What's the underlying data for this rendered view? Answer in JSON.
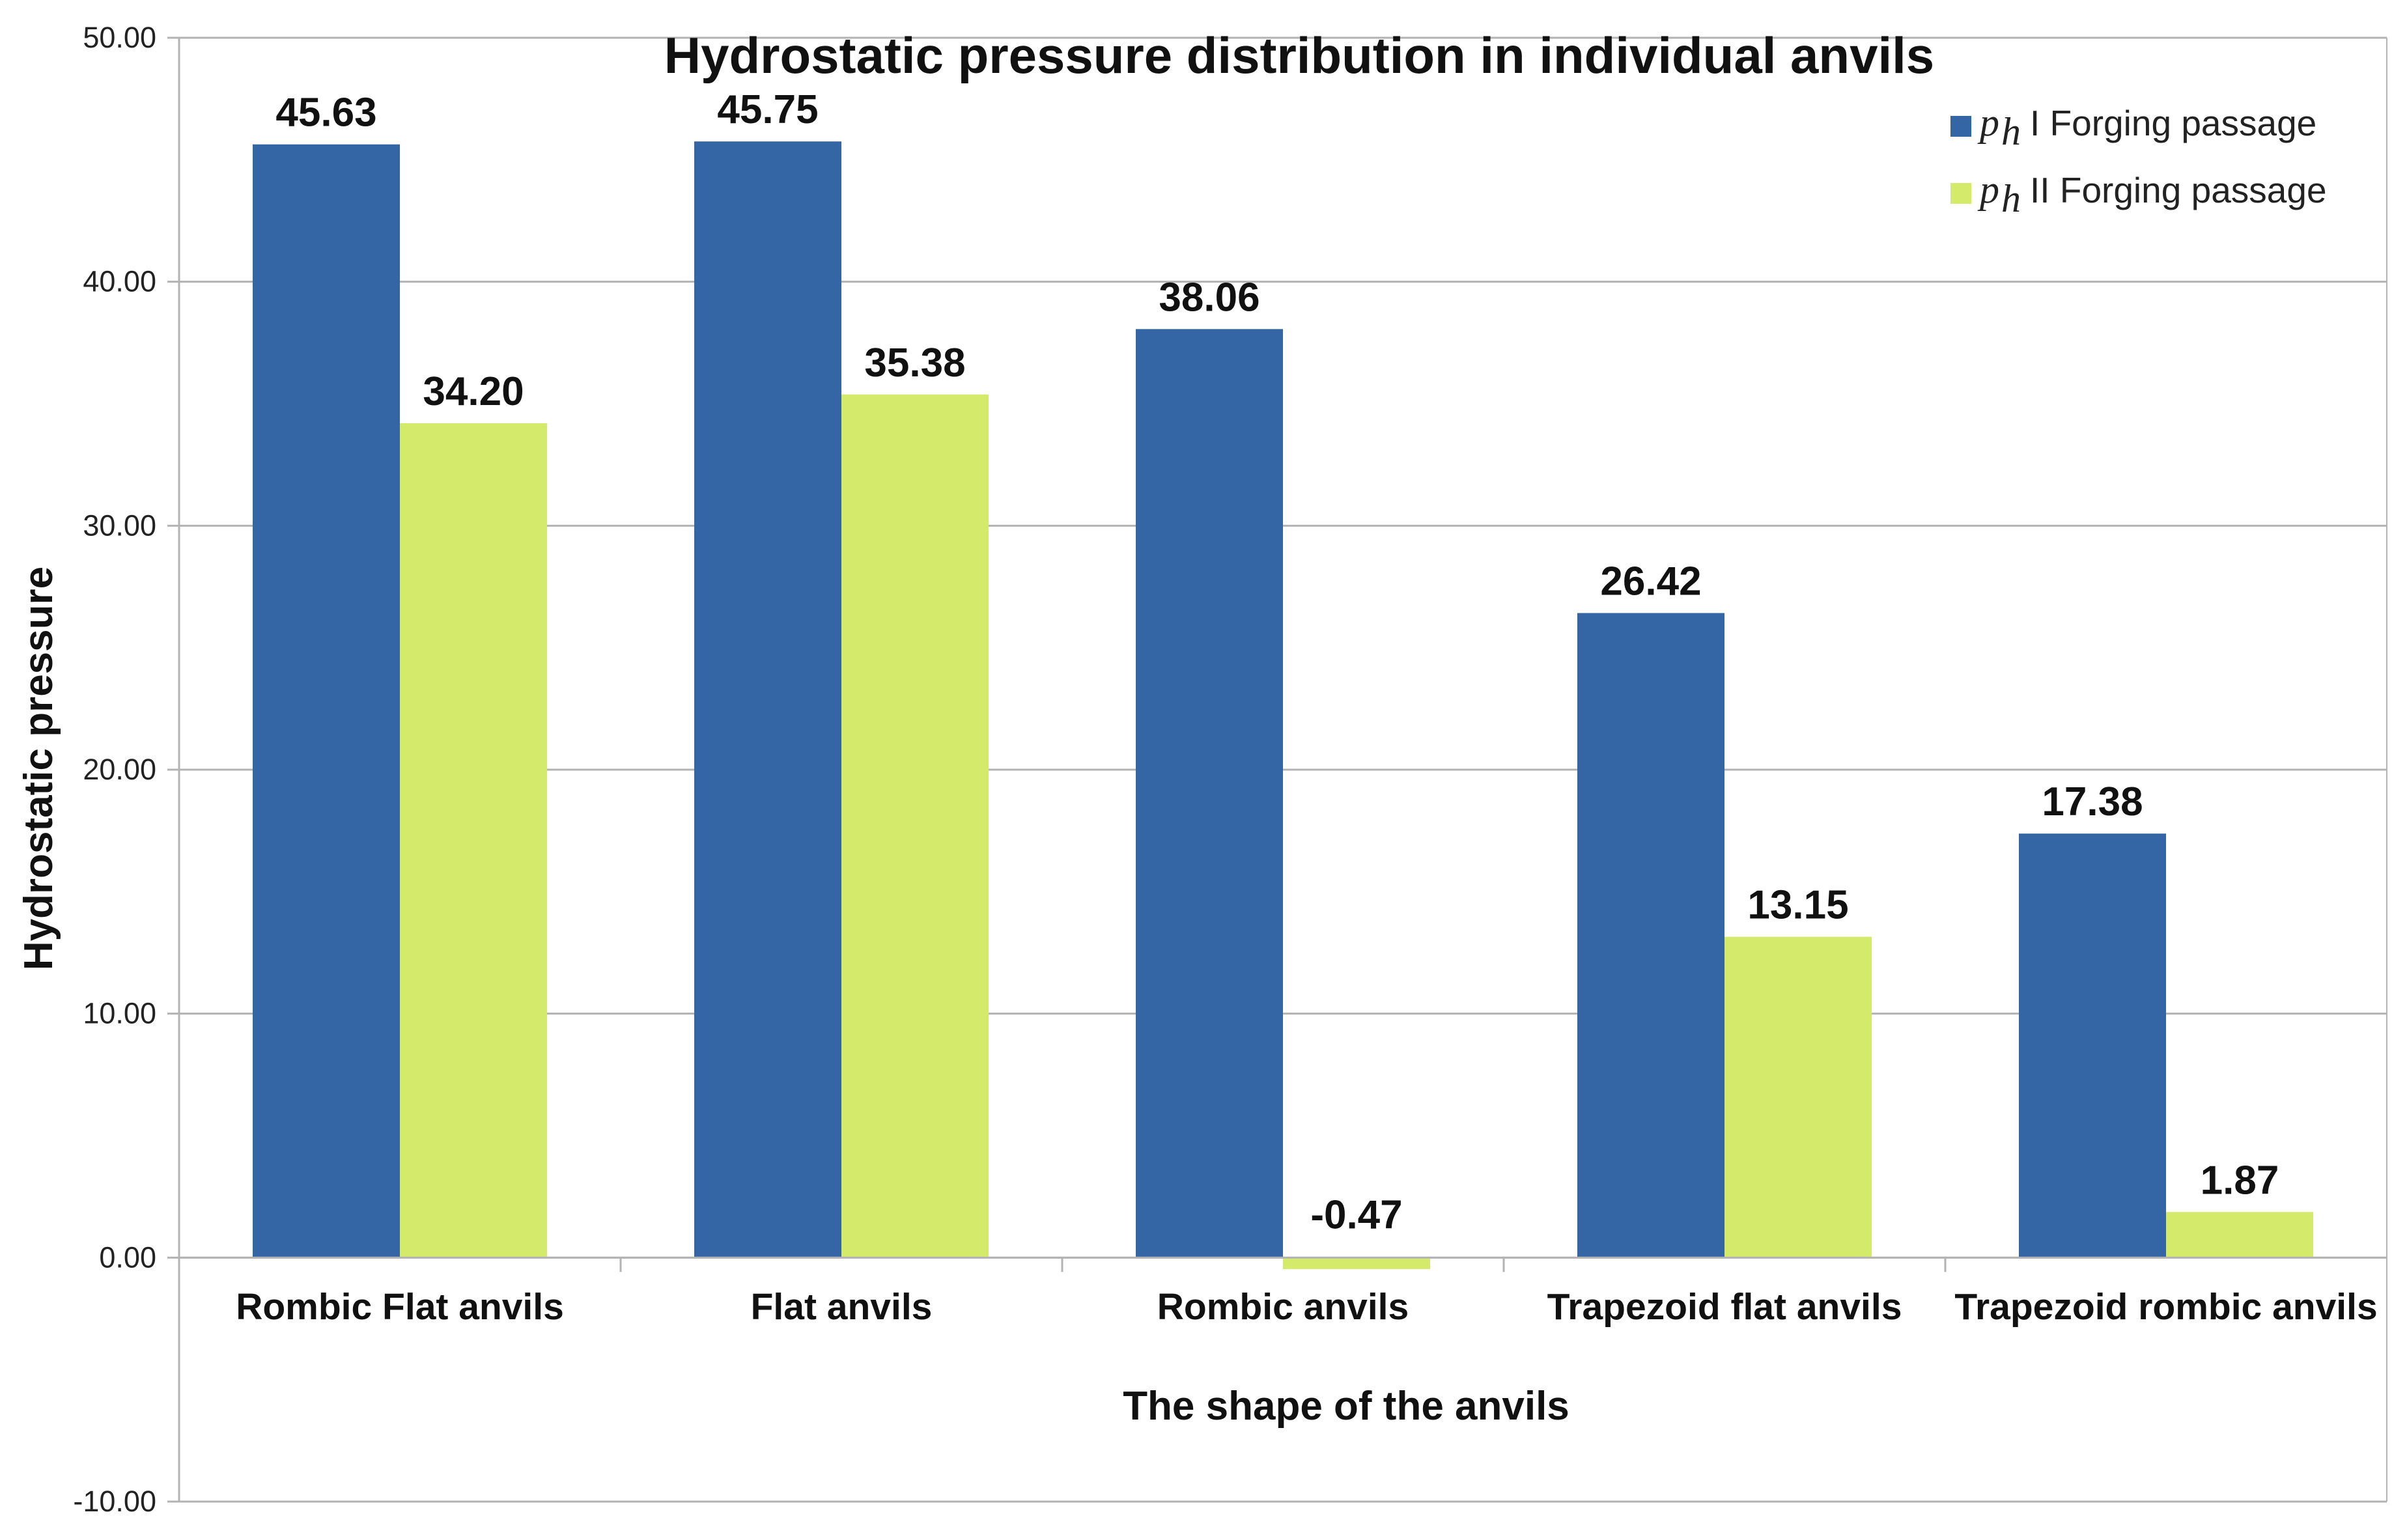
{
  "chart_data": {
    "type": "bar",
    "title": "Hydrostatic pressure distribution in individual anvils",
    "xlabel": "The shape of the anvils",
    "ylabel": "Hydrostatic pressure",
    "ylim": [
      -10,
      50
    ],
    "yticks": [
      "50.00",
      "40.00",
      "30.00",
      "20.00",
      "10.00",
      "0.00",
      "-10.00"
    ],
    "categories": [
      "Rombic Flat anvils",
      "Flat anvils",
      "Rombic anvils",
      "Trapezoid flat anvils",
      "Trapezoid rombic anvils"
    ],
    "series": [
      {
        "name": "I Forging passage",
        "symbol": "p",
        "subscript": "h",
        "color": "#3465a4",
        "values": [
          45.63,
          45.75,
          38.06,
          26.42,
          17.38
        ],
        "labels": [
          "45.63",
          "45.75",
          "38.06",
          "26.42",
          "17.38"
        ]
      },
      {
        "name": "II Forging passage",
        "symbol": "p",
        "subscript": "h",
        "color": "#d4ea6b",
        "values": [
          34.2,
          35.38,
          -0.47,
          13.15,
          1.87
        ],
        "labels": [
          "34.20",
          "35.38",
          "-0.47",
          "13.15",
          "1.87"
        ]
      }
    ],
    "grid": true,
    "grid_color": "#b3b3b3",
    "legend_position": "top-right"
  }
}
